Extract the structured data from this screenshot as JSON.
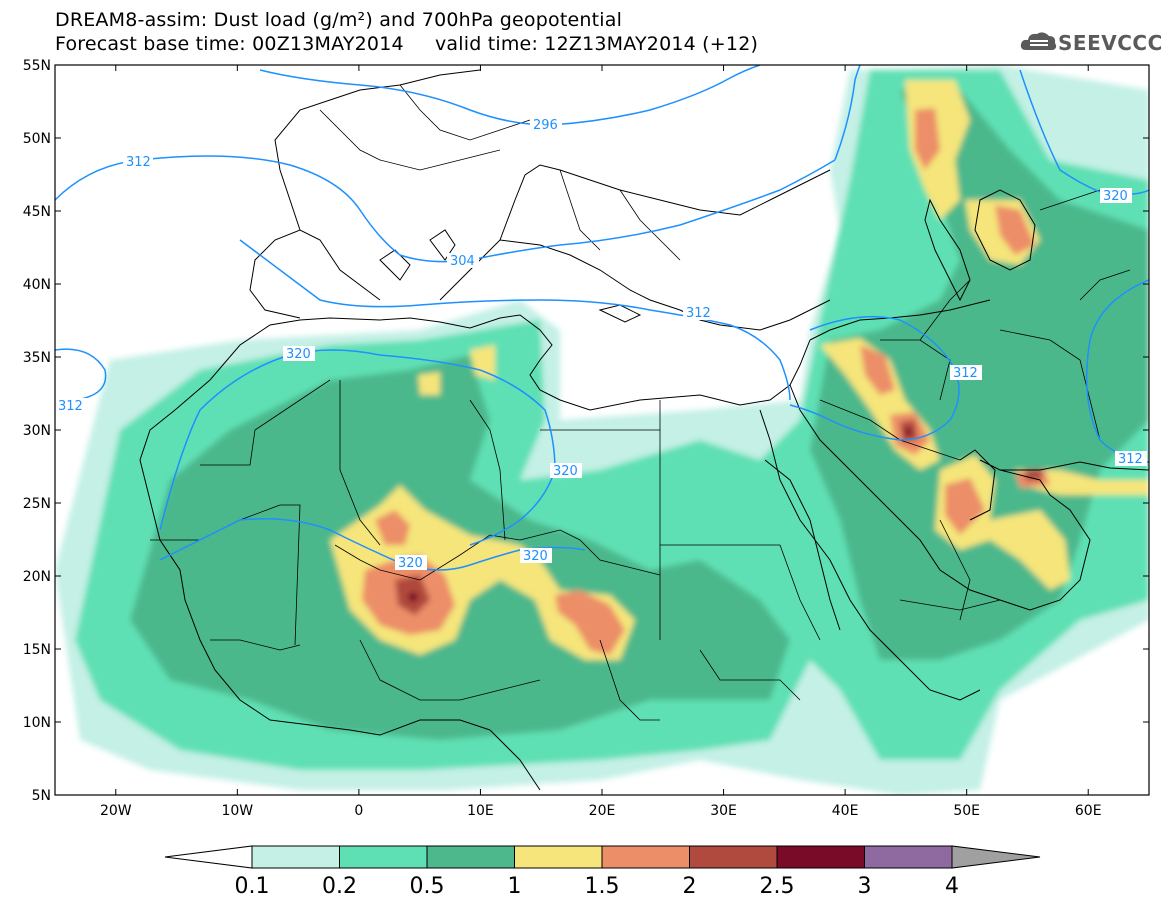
{
  "header": {
    "title_line1": "DREAM8-assim: Dust load (g/m²) and 700hPa geopotential",
    "title_line2": "Forecast base time: 00Z13MAY2014     valid time: 12Z13MAY2014 (+12)",
    "logo_text": "SEEVCCC"
  },
  "map": {
    "projection": "lat-lon",
    "lon_range": [
      -25,
      65
    ],
    "lat_range": [
      5,
      55
    ],
    "lat_ticks": [
      "55N",
      "50N",
      "45N",
      "40N",
      "35N",
      "30N",
      "25N",
      "20N",
      "15N",
      "10N",
      "5N"
    ],
    "lon_ticks": [
      "20W",
      "10W",
      "0",
      "10E",
      "20E",
      "30E",
      "40E",
      "50E",
      "60E"
    ],
    "contour_labels": [
      "312",
      "296",
      "304",
      "312",
      "312",
      "320",
      "320",
      "320",
      "320",
      "312",
      "320",
      "312"
    ],
    "contour_color": "#1e90ff"
  },
  "colorbar": {
    "labels": [
      "0.1",
      "0.2",
      "0.5",
      "1",
      "1.5",
      "2",
      "2.5",
      "3",
      "4"
    ],
    "colors": [
      "#c4f0e6",
      "#5fe0b4",
      "#4cb88c",
      "#f5e57a",
      "#ec8e68",
      "#b04a3e",
      "#7a0b28",
      "#8e6aa0"
    ],
    "under_color": "#ffffff",
    "over_color": "#a0a0a0"
  },
  "colors": {
    "lightest": "#c4f0e6",
    "light": "#5fe0b4",
    "medium": "#4cb88c",
    "yellow": "#f5e57a",
    "orange": "#ec8e68",
    "red": "#b04a3e",
    "maroon": "#7a0b28"
  }
}
